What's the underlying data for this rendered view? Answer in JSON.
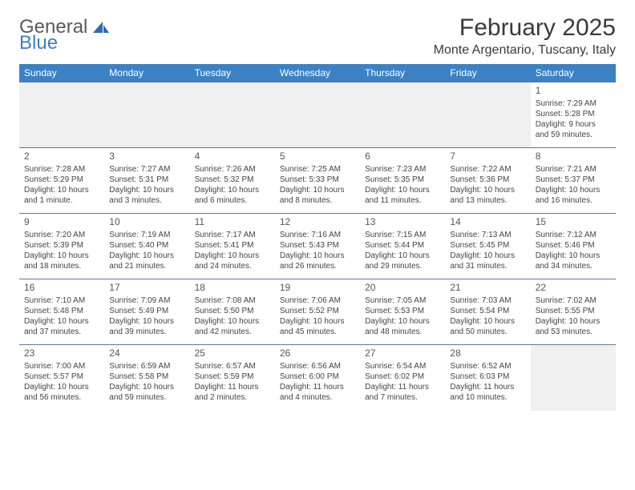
{
  "logo": {
    "word1": "General",
    "word2": "Blue"
  },
  "title": "February 2025",
  "location": "Monte Argentario, Tuscany, Italy",
  "colors": {
    "header_bg": "#3b82c4",
    "header_fg": "#ffffff",
    "row_border": "#5b7a99",
    "empty_bg": "#f0f0f0",
    "text": "#444444",
    "logo_gray": "#5a5a5a",
    "logo_blue": "#3b7fc4"
  },
  "days_of_week": [
    "Sunday",
    "Monday",
    "Tuesday",
    "Wednesday",
    "Thursday",
    "Friday",
    "Saturday"
  ],
  "weeks": [
    [
      null,
      null,
      null,
      null,
      null,
      null,
      {
        "n": "1",
        "sr": "Sunrise: 7:29 AM",
        "ss": "Sunset: 5:28 PM",
        "d1": "Daylight: 9 hours",
        "d2": "and 59 minutes."
      }
    ],
    [
      {
        "n": "2",
        "sr": "Sunrise: 7:28 AM",
        "ss": "Sunset: 5:29 PM",
        "d1": "Daylight: 10 hours",
        "d2": "and 1 minute."
      },
      {
        "n": "3",
        "sr": "Sunrise: 7:27 AM",
        "ss": "Sunset: 5:31 PM",
        "d1": "Daylight: 10 hours",
        "d2": "and 3 minutes."
      },
      {
        "n": "4",
        "sr": "Sunrise: 7:26 AM",
        "ss": "Sunset: 5:32 PM",
        "d1": "Daylight: 10 hours",
        "d2": "and 6 minutes."
      },
      {
        "n": "5",
        "sr": "Sunrise: 7:25 AM",
        "ss": "Sunset: 5:33 PM",
        "d1": "Daylight: 10 hours",
        "d2": "and 8 minutes."
      },
      {
        "n": "6",
        "sr": "Sunrise: 7:23 AM",
        "ss": "Sunset: 5:35 PM",
        "d1": "Daylight: 10 hours",
        "d2": "and 11 minutes."
      },
      {
        "n": "7",
        "sr": "Sunrise: 7:22 AM",
        "ss": "Sunset: 5:36 PM",
        "d1": "Daylight: 10 hours",
        "d2": "and 13 minutes."
      },
      {
        "n": "8",
        "sr": "Sunrise: 7:21 AM",
        "ss": "Sunset: 5:37 PM",
        "d1": "Daylight: 10 hours",
        "d2": "and 16 minutes."
      }
    ],
    [
      {
        "n": "9",
        "sr": "Sunrise: 7:20 AM",
        "ss": "Sunset: 5:39 PM",
        "d1": "Daylight: 10 hours",
        "d2": "and 18 minutes."
      },
      {
        "n": "10",
        "sr": "Sunrise: 7:19 AM",
        "ss": "Sunset: 5:40 PM",
        "d1": "Daylight: 10 hours",
        "d2": "and 21 minutes."
      },
      {
        "n": "11",
        "sr": "Sunrise: 7:17 AM",
        "ss": "Sunset: 5:41 PM",
        "d1": "Daylight: 10 hours",
        "d2": "and 24 minutes."
      },
      {
        "n": "12",
        "sr": "Sunrise: 7:16 AM",
        "ss": "Sunset: 5:43 PM",
        "d1": "Daylight: 10 hours",
        "d2": "and 26 minutes."
      },
      {
        "n": "13",
        "sr": "Sunrise: 7:15 AM",
        "ss": "Sunset: 5:44 PM",
        "d1": "Daylight: 10 hours",
        "d2": "and 29 minutes."
      },
      {
        "n": "14",
        "sr": "Sunrise: 7:13 AM",
        "ss": "Sunset: 5:45 PM",
        "d1": "Daylight: 10 hours",
        "d2": "and 31 minutes."
      },
      {
        "n": "15",
        "sr": "Sunrise: 7:12 AM",
        "ss": "Sunset: 5:46 PM",
        "d1": "Daylight: 10 hours",
        "d2": "and 34 minutes."
      }
    ],
    [
      {
        "n": "16",
        "sr": "Sunrise: 7:10 AM",
        "ss": "Sunset: 5:48 PM",
        "d1": "Daylight: 10 hours",
        "d2": "and 37 minutes."
      },
      {
        "n": "17",
        "sr": "Sunrise: 7:09 AM",
        "ss": "Sunset: 5:49 PM",
        "d1": "Daylight: 10 hours",
        "d2": "and 39 minutes."
      },
      {
        "n": "18",
        "sr": "Sunrise: 7:08 AM",
        "ss": "Sunset: 5:50 PM",
        "d1": "Daylight: 10 hours",
        "d2": "and 42 minutes."
      },
      {
        "n": "19",
        "sr": "Sunrise: 7:06 AM",
        "ss": "Sunset: 5:52 PM",
        "d1": "Daylight: 10 hours",
        "d2": "and 45 minutes."
      },
      {
        "n": "20",
        "sr": "Sunrise: 7:05 AM",
        "ss": "Sunset: 5:53 PM",
        "d1": "Daylight: 10 hours",
        "d2": "and 48 minutes."
      },
      {
        "n": "21",
        "sr": "Sunrise: 7:03 AM",
        "ss": "Sunset: 5:54 PM",
        "d1": "Daylight: 10 hours",
        "d2": "and 50 minutes."
      },
      {
        "n": "22",
        "sr": "Sunrise: 7:02 AM",
        "ss": "Sunset: 5:55 PM",
        "d1": "Daylight: 10 hours",
        "d2": "and 53 minutes."
      }
    ],
    [
      {
        "n": "23",
        "sr": "Sunrise: 7:00 AM",
        "ss": "Sunset: 5:57 PM",
        "d1": "Daylight: 10 hours",
        "d2": "and 56 minutes."
      },
      {
        "n": "24",
        "sr": "Sunrise: 6:59 AM",
        "ss": "Sunset: 5:58 PM",
        "d1": "Daylight: 10 hours",
        "d2": "and 59 minutes."
      },
      {
        "n": "25",
        "sr": "Sunrise: 6:57 AM",
        "ss": "Sunset: 5:59 PM",
        "d1": "Daylight: 11 hours",
        "d2": "and 2 minutes."
      },
      {
        "n": "26",
        "sr": "Sunrise: 6:56 AM",
        "ss": "Sunset: 6:00 PM",
        "d1": "Daylight: 11 hours",
        "d2": "and 4 minutes."
      },
      {
        "n": "27",
        "sr": "Sunrise: 6:54 AM",
        "ss": "Sunset: 6:02 PM",
        "d1": "Daylight: 11 hours",
        "d2": "and 7 minutes."
      },
      {
        "n": "28",
        "sr": "Sunrise: 6:52 AM",
        "ss": "Sunset: 6:03 PM",
        "d1": "Daylight: 11 hours",
        "d2": "and 10 minutes."
      },
      null
    ]
  ]
}
